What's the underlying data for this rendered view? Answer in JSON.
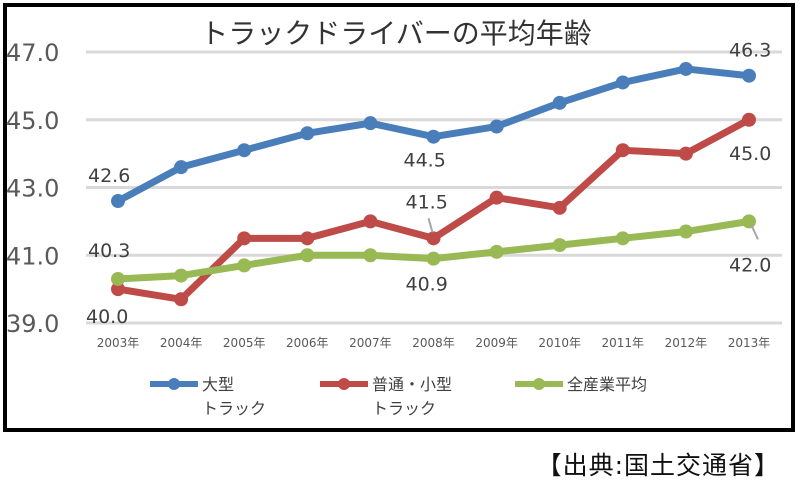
{
  "chart_data": {
    "type": "line",
    "title": "トラックドライバーの平均年齢",
    "xlabel": "",
    "ylabel": "",
    "categories": [
      "2003年",
      "2004年",
      "2005年",
      "2006年",
      "2007年",
      "2008年",
      "2009年",
      "2010年",
      "2011年",
      "2012年",
      "2013年"
    ],
    "ylim": [
      39.0,
      47.0
    ],
    "yticks": [
      "39.0",
      "41.0",
      "43.0",
      "45.0",
      "47.0"
    ],
    "ytick_values": [
      39.0,
      41.0,
      43.0,
      45.0,
      47.0
    ],
    "grid": true,
    "legend_position": "bottom",
    "series": [
      {
        "name": "大型トラック",
        "legend_lines": [
          "大型",
          "トラック"
        ],
        "color": "#4a7ebb",
        "values": [
          42.6,
          43.6,
          44.1,
          44.6,
          44.9,
          44.5,
          44.8,
          45.5,
          46.1,
          46.5,
          46.3
        ]
      },
      {
        "name": "普通・小型トラック",
        "legend_lines": [
          "普通・小型",
          "トラック"
        ],
        "color": "#be4b48",
        "values": [
          40.0,
          39.7,
          41.5,
          41.5,
          42.0,
          41.5,
          42.7,
          42.4,
          44.1,
          44.0,
          45.0
        ]
      },
      {
        "name": "全産業平均",
        "legend_lines": [
          "全産業平均"
        ],
        "color": "#98b954",
        "values": [
          40.3,
          40.4,
          40.7,
          41.0,
          41.0,
          40.9,
          41.1,
          41.3,
          41.5,
          41.7,
          42.0
        ]
      }
    ],
    "data_labels": [
      {
        "series": 0,
        "index": 0,
        "text": "42.6"
      },
      {
        "series": 0,
        "index": 5,
        "text": "44.5"
      },
      {
        "series": 0,
        "index": 10,
        "text": "46.3"
      },
      {
        "series": 1,
        "index": 0,
        "text": "40.0"
      },
      {
        "series": 1,
        "index": 5,
        "text": "41.5"
      },
      {
        "series": 1,
        "index": 10,
        "text": "45.0"
      },
      {
        "series": 2,
        "index": 0,
        "text": "40.3"
      },
      {
        "series": 2,
        "index": 5,
        "text": "40.9"
      },
      {
        "series": 2,
        "index": 10,
        "text": "42.0"
      }
    ]
  },
  "source": "【出典:国土交通省】"
}
